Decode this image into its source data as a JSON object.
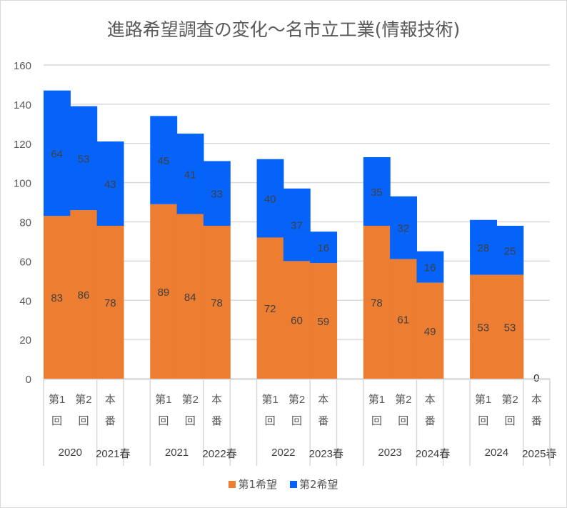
{
  "chart_data": {
    "type": "bar",
    "stacked": true,
    "title": "進路希望調査の変化～名市立工業(情報技術)",
    "xlabel": "",
    "ylabel": "",
    "ylim": [
      0,
      160
    ],
    "yticks": [
      0,
      20,
      40,
      60,
      80,
      100,
      120,
      140,
      160
    ],
    "grid": true,
    "legend_position": "bottom",
    "groups": [
      {
        "year": "2020",
        "spring": "2021春"
      },
      {
        "year": "2021",
        "spring": "2022春"
      },
      {
        "year": "2022",
        "spring": "2023春"
      },
      {
        "year": "2023",
        "spring": "2024春"
      },
      {
        "year": "2024",
        "spring": "2025春"
      }
    ],
    "category_labels": [
      [
        "第1",
        "回"
      ],
      [
        "第2",
        "回"
      ],
      [
        "本",
        "番"
      ]
    ],
    "series": [
      {
        "name": "第1希望",
        "color": "#ed7d31",
        "values": [
          [
            83,
            86,
            78
          ],
          [
            89,
            84,
            78
          ],
          [
            72,
            60,
            59
          ],
          [
            78,
            61,
            49
          ],
          [
            53,
            53,
            0
          ]
        ]
      },
      {
        "name": "第2希望",
        "color": "#0563fa",
        "values": [
          [
            64,
            53,
            43
          ],
          [
            45,
            41,
            33
          ],
          [
            40,
            37,
            16
          ],
          [
            35,
            32,
            16
          ],
          [
            28,
            25,
            null
          ]
        ]
      }
    ]
  }
}
